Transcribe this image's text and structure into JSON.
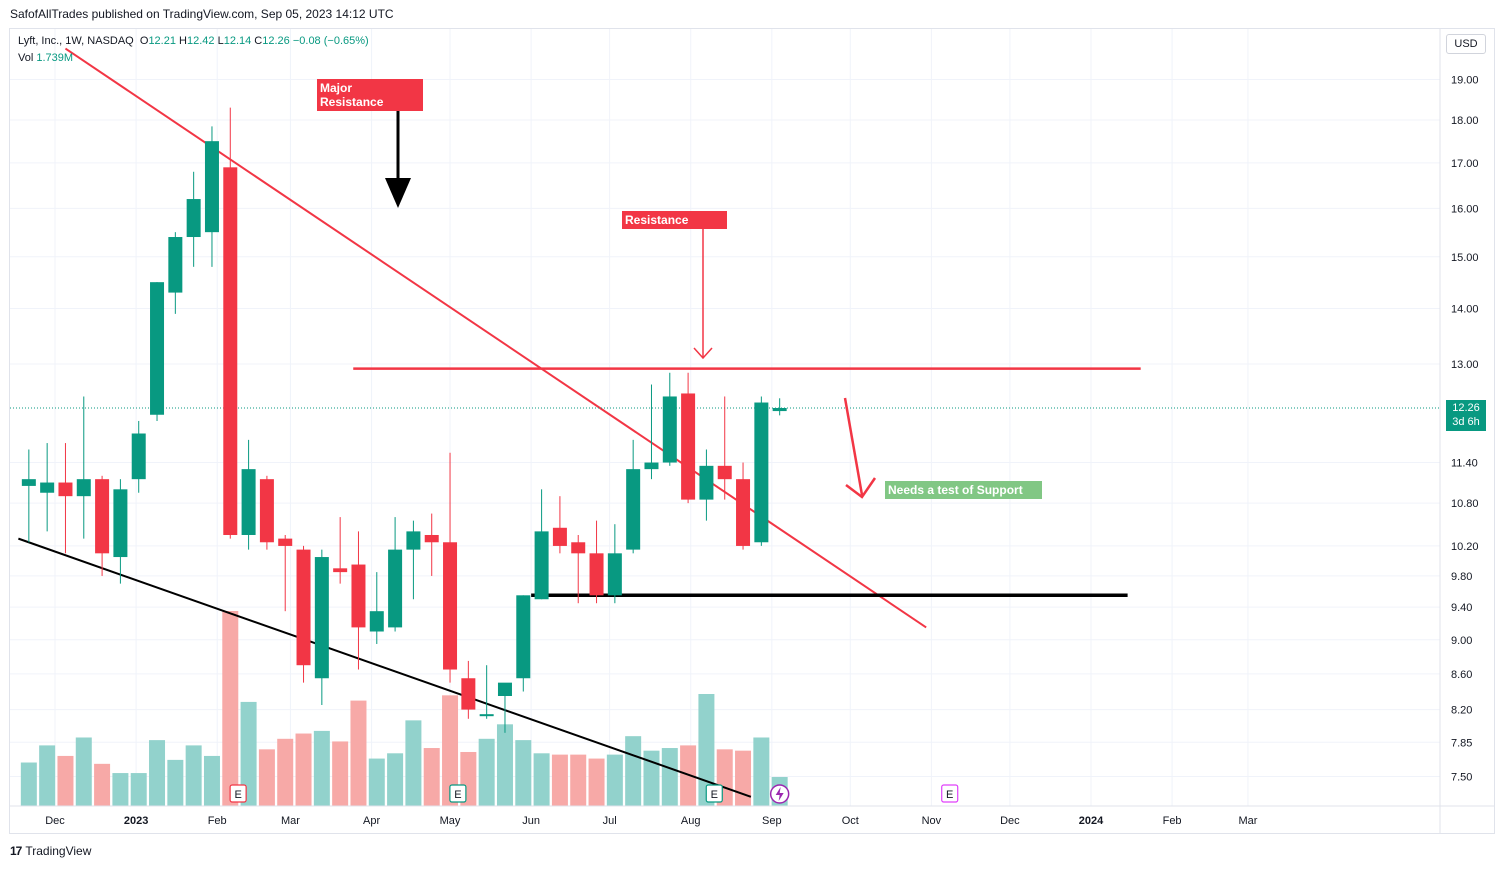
{
  "header": {
    "published": "SafofAllTrades published on TradingView.com, Sep 05, 2023 14:12 UTC"
  },
  "legend": {
    "symbol": "Lyft, Inc., 1W, NASDAQ",
    "o_label": "O",
    "o": "12.21",
    "h_label": "H",
    "h": "12.42",
    "l_label": "L",
    "l": "12.14",
    "c_label": "C",
    "c": "12.26",
    "change": "−0.08 (−0.65%)",
    "vol_label": "Vol",
    "vol": "1.739M"
  },
  "currency": "USD",
  "last_price": {
    "price": "12.26",
    "countdown": "3d 6h"
  },
  "footer": {
    "brand": "TradingView"
  },
  "colors": {
    "up": "#089981",
    "down": "#f23645",
    "vol_up": "#92d2cc",
    "vol_down": "#f7a9a7",
    "annotation": "#f23645",
    "support_note": "#81c784"
  },
  "annotations": {
    "major_resistance": "Major\nResistance",
    "resistance": "Resistance",
    "support_note": "Needs a test of Support",
    "earnings_marker": "E"
  },
  "chart_data": {
    "type": "candlestick",
    "title": "",
    "xlabel": "",
    "ylabel": "",
    "y_scale": "log",
    "ylim": [
      7.25,
      19.5
    ],
    "y_ticks": [
      "19.00",
      "18.00",
      "17.00",
      "16.00",
      "15.00",
      "14.00",
      "13.00",
      "11.40",
      "10.80",
      "10.20",
      "9.80",
      "9.40",
      "9.00",
      "8.60",
      "8.20",
      "7.85",
      "7.50"
    ],
    "x_ticks": [
      "Dec",
      "2023",
      "Feb",
      "Mar",
      "Apr",
      "May",
      "Jun",
      "Jul",
      "Aug",
      "Sep",
      "Oct",
      "Nov",
      "Dec",
      "2024",
      "Feb",
      "Mar"
    ],
    "candles": [
      {
        "date": "2022-11-21",
        "o": 11.05,
        "h": 11.6,
        "l": 10.25,
        "c": 11.15
      },
      {
        "date": "2022-11-28",
        "o": 10.95,
        "h": 11.7,
        "l": 10.4,
        "c": 11.1
      },
      {
        "date": "2022-12-05",
        "o": 11.1,
        "h": 11.7,
        "l": 10.1,
        "c": 10.9
      },
      {
        "date": "2022-12-12",
        "o": 10.9,
        "h": 12.45,
        "l": 10.3,
        "c": 11.15
      },
      {
        "date": "2022-12-19",
        "o": 11.15,
        "h": 11.2,
        "l": 9.8,
        "c": 10.1
      },
      {
        "date": "2022-12-26",
        "o": 10.05,
        "h": 11.15,
        "l": 9.7,
        "c": 11.0
      },
      {
        "date": "2023-01-02",
        "o": 11.15,
        "h": 12.05,
        "l": 10.95,
        "c": 11.85
      },
      {
        "date": "2023-01-09",
        "o": 12.15,
        "h": 14.5,
        "l": 12.05,
        "c": 14.5
      },
      {
        "date": "2023-01-16",
        "o": 14.3,
        "h": 15.5,
        "l": 13.9,
        "c": 15.4
      },
      {
        "date": "2023-01-23",
        "o": 15.4,
        "h": 16.8,
        "l": 14.8,
        "c": 16.2
      },
      {
        "date": "2023-01-30",
        "o": 15.5,
        "h": 17.85,
        "l": 14.8,
        "c": 17.5
      },
      {
        "date": "2023-02-06",
        "o": 16.9,
        "h": 18.3,
        "l": 10.3,
        "c": 10.35
      },
      {
        "date": "2023-02-13",
        "o": 10.35,
        "h": 11.75,
        "l": 10.15,
        "c": 11.3
      },
      {
        "date": "2023-02-20",
        "o": 11.15,
        "h": 11.2,
        "l": 10.15,
        "c": 10.25
      },
      {
        "date": "2023-02-27",
        "o": 10.3,
        "h": 10.35,
        "l": 9.35,
        "c": 10.2
      },
      {
        "date": "2023-03-06",
        "o": 10.15,
        "h": 10.2,
        "l": 8.5,
        "c": 8.7
      },
      {
        "date": "2023-03-13",
        "o": 8.55,
        "h": 10.15,
        "l": 8.25,
        "c": 10.05
      },
      {
        "date": "2023-03-20",
        "o": 9.9,
        "h": 10.6,
        "l": 9.7,
        "c": 9.85
      },
      {
        "date": "2023-03-27",
        "o": 9.95,
        "h": 10.4,
        "l": 8.65,
        "c": 9.15
      },
      {
        "date": "2023-04-03",
        "o": 9.1,
        "h": 9.85,
        "l": 8.95,
        "c": 9.35
      },
      {
        "date": "2023-04-10",
        "o": 9.15,
        "h": 10.6,
        "l": 9.1,
        "c": 10.15
      },
      {
        "date": "2023-04-17",
        "o": 10.15,
        "h": 10.55,
        "l": 9.5,
        "c": 10.4
      },
      {
        "date": "2023-04-24",
        "o": 10.35,
        "h": 10.65,
        "l": 9.8,
        "c": 10.25
      },
      {
        "date": "2023-05-01",
        "o": 10.25,
        "h": 11.55,
        "l": 8.5,
        "c": 8.65
      },
      {
        "date": "2023-05-08",
        "o": 8.55,
        "h": 8.75,
        "l": 8.1,
        "c": 8.2
      },
      {
        "date": "2023-05-15",
        "o": 8.15,
        "h": 8.7,
        "l": 8.1,
        "c": 8.15
      },
      {
        "date": "2023-05-22",
        "o": 8.35,
        "h": 8.45,
        "l": 7.95,
        "c": 8.5
      },
      {
        "date": "2023-05-29",
        "o": 8.55,
        "h": 9.55,
        "l": 8.4,
        "c": 9.55
      },
      {
        "date": "2023-06-05",
        "o": 9.5,
        "h": 11.0,
        "l": 9.5,
        "c": 10.4
      },
      {
        "date": "2023-06-12",
        "o": 10.45,
        "h": 10.9,
        "l": 10.1,
        "c": 10.2
      },
      {
        "date": "2023-06-19",
        "o": 10.25,
        "h": 10.35,
        "l": 9.45,
        "c": 10.1
      },
      {
        "date": "2023-06-26",
        "o": 10.1,
        "h": 10.55,
        "l": 9.45,
        "c": 9.55
      },
      {
        "date": "2023-07-03",
        "o": 9.55,
        "h": 10.5,
        "l": 9.45,
        "c": 10.1
      },
      {
        "date": "2023-07-10",
        "o": 10.15,
        "h": 11.75,
        "l": 10.1,
        "c": 11.3
      },
      {
        "date": "2023-07-17",
        "o": 11.3,
        "h": 12.65,
        "l": 11.15,
        "c": 11.4
      },
      {
        "date": "2023-07-24",
        "o": 11.4,
        "h": 12.85,
        "l": 11.35,
        "c": 12.45
      },
      {
        "date": "2023-07-31",
        "o": 12.5,
        "h": 12.85,
        "l": 10.8,
        "c": 10.85
      },
      {
        "date": "2023-08-07",
        "o": 10.85,
        "h": 11.6,
        "l": 10.55,
        "c": 11.35
      },
      {
        "date": "2023-08-14",
        "o": 11.35,
        "h": 12.45,
        "l": 10.85,
        "c": 11.15
      },
      {
        "date": "2023-08-21",
        "o": 11.15,
        "h": 11.4,
        "l": 10.15,
        "c": 10.2
      },
      {
        "date": "2023-08-28",
        "o": 10.25,
        "h": 12.45,
        "l": 10.2,
        "c": 12.35
      },
      {
        "date": "2023-09-04",
        "o": 12.21,
        "h": 12.42,
        "l": 12.14,
        "c": 12.26
      }
    ],
    "volume_ratio": [
      0.33,
      0.46,
      0.38,
      0.52,
      0.32,
      0.25,
      0.25,
      0.5,
      0.35,
      0.46,
      0.38,
      1.48,
      0.79,
      0.43,
      0.51,
      0.55,
      0.57,
      0.49,
      0.8,
      0.36,
      0.4,
      0.65,
      0.44,
      0.84,
      0.41,
      0.51,
      0.62,
      0.5,
      0.4,
      0.39,
      0.39,
      0.36,
      0.39,
      0.53,
      0.42,
      0.44,
      0.46,
      0.85,
      0.43,
      0.42,
      0.52,
      0.22
    ],
    "lines": [
      {
        "name": "descending-trendline",
        "from": {
          "date": "2022-12-05",
          "price": 19.8
        },
        "to": {
          "date": "2023-10-30",
          "price": 9.15
        }
      },
      {
        "name": "lower-trendline",
        "from": {
          "date": "2022-11-17",
          "price": 10.3
        },
        "to": {
          "date": "2023-08-24",
          "price": 7.3
        }
      },
      {
        "name": "resistance-line",
        "from": {
          "date": "2023-03-25",
          "price": 12.92
        },
        "to": {
          "date": "2024-01-20",
          "price": 12.92
        }
      },
      {
        "name": "support-line",
        "from": {
          "date": "2023-06-01",
          "price": 9.55
        },
        "to": {
          "date": "2024-01-15",
          "price": 9.55
        }
      }
    ],
    "earnings_dates": [
      "2023-02-09",
      "2023-05-04",
      "2023-08-10",
      "2023-11-08"
    ],
    "event_marker_date": "2023-09-04"
  }
}
